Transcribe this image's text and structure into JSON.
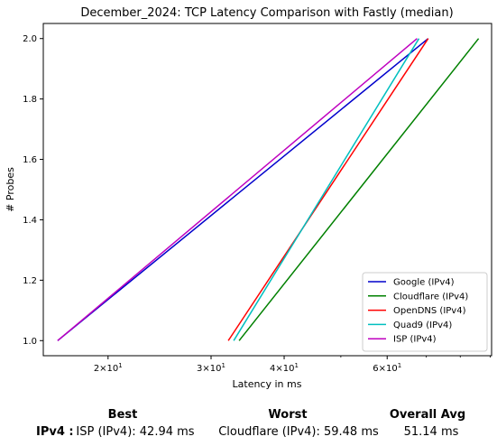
{
  "chart_data": {
    "type": "line",
    "title": "December_2024: TCP Latency Comparison with Fastly (median)",
    "xlabel": "Latency in ms",
    "ylabel": "# Probes",
    "xscale": "log",
    "xlim": [
      15.5,
      90.5
    ],
    "ylim": [
      0.95,
      2.05
    ],
    "x_ticks": [
      {
        "value": 20,
        "base": "2",
        "exp": "1"
      },
      {
        "value": 30,
        "base": "3",
        "exp": "1"
      },
      {
        "value": 40,
        "base": "4",
        "exp": "1"
      },
      {
        "value": 60,
        "base": "6",
        "exp": "1"
      }
    ],
    "y_ticks": [
      {
        "value": 1.0,
        "label": "1.0"
      },
      {
        "value": 1.2,
        "label": "1.2"
      },
      {
        "value": 1.4,
        "label": "1.4"
      },
      {
        "value": 1.6,
        "label": "1.6"
      },
      {
        "value": 1.8,
        "label": "1.8"
      },
      {
        "value": 2.0,
        "label": "2.0"
      }
    ],
    "legend_position": "lower-right",
    "grid": false,
    "series": [
      {
        "name": "Google (IPv4)",
        "color": "#0000cc",
        "x": [
          16.4,
          70.5
        ],
        "y": [
          1,
          2
        ]
      },
      {
        "name": "Cloudflare (IPv4)",
        "color": "#008000",
        "x": [
          33.5,
          86.0
        ],
        "y": [
          1,
          2
        ]
      },
      {
        "name": "OpenDNS (IPv4)",
        "color": "#ff0000",
        "x": [
          32.1,
          70.5
        ],
        "y": [
          1,
          2
        ]
      },
      {
        "name": "Quad9 (IPv4)",
        "color": "#00bfbf",
        "x": [
          32.8,
          68.0
        ],
        "y": [
          1,
          2
        ]
      },
      {
        "name": "ISP (IPv4)",
        "color": "#bf00bf",
        "x": [
          16.4,
          67.5
        ],
        "y": [
          1,
          2
        ]
      }
    ]
  },
  "summary": {
    "headers": {
      "best": "Best",
      "worst": "Worst",
      "avg": "Overall Avg"
    },
    "row": {
      "label": "IPv4 :",
      "best": "ISP (IPv4): 42.94 ms",
      "worst": "Cloudflare (IPv4): 59.48 ms",
      "avg": "51.14 ms"
    }
  }
}
